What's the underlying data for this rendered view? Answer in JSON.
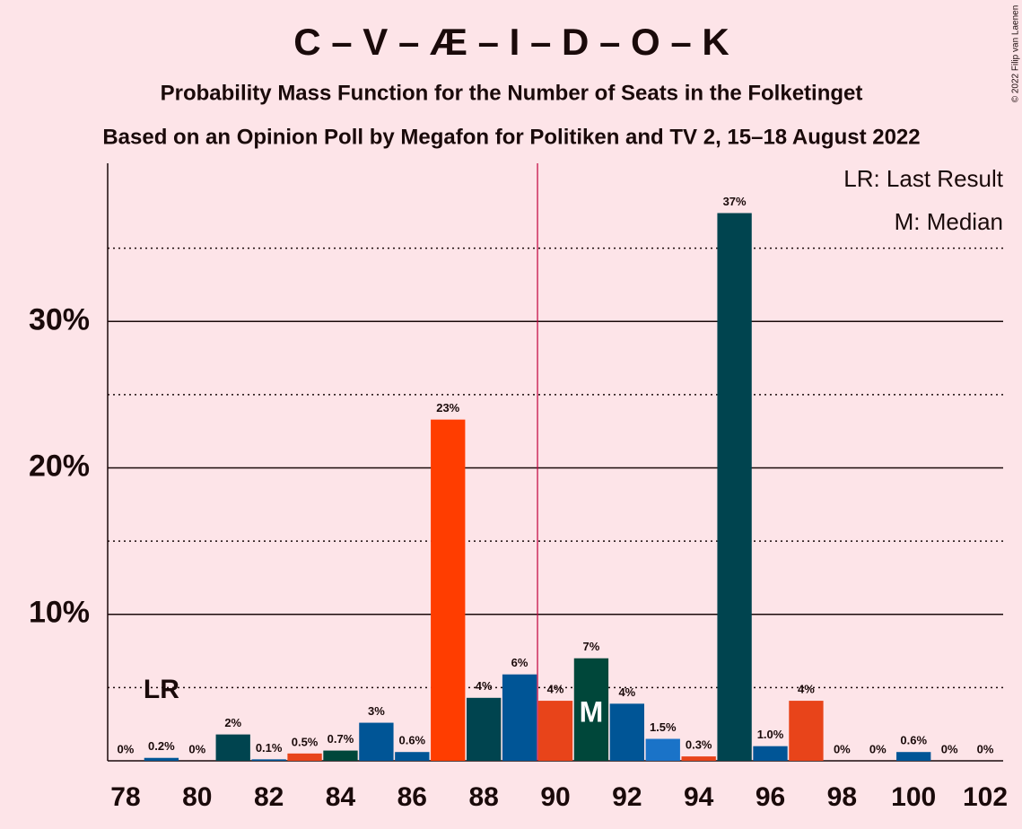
{
  "chart_data": {
    "type": "bar",
    "title": "C – V – Æ – I – D – O – K",
    "subtitles": [
      "Probability Mass Function for the Number of Seats in the Folketinget",
      "Based on an Opinion Poll by Megafon for Politiken and TV 2, 15–18 August 2022"
    ],
    "credit": "© 2022 Filip van Laenen",
    "x": [
      78,
      79,
      80,
      81,
      82,
      83,
      84,
      85,
      86,
      87,
      88,
      89,
      90,
      91,
      92,
      93,
      94,
      95,
      96,
      97,
      98,
      99,
      100,
      101,
      102
    ],
    "values": [
      0,
      0.2,
      0,
      1.8,
      0.1,
      0.5,
      0.7,
      2.6,
      0.6,
      23.3,
      4.3,
      5.9,
      4.1,
      7.0,
      3.9,
      1.5,
      0.3,
      37.4,
      1.0,
      4.1,
      0,
      0,
      0.6,
      0,
      0
    ],
    "value_labels": [
      "0%",
      "0.2%",
      "0%",
      "2%",
      "0.1%",
      "0.5%",
      "0.7%",
      "3%",
      "0.6%",
      "23%",
      "4%",
      "6%",
      "4%",
      "7%",
      "4%",
      "1.5%",
      "0.3%",
      "37%",
      "1.0%",
      "4%",
      "0%",
      "0%",
      "0.6%",
      "0%",
      "0%"
    ],
    "colors": [
      "#005596",
      "#005596",
      "#005596",
      "#00444f",
      "#005596",
      "#e8441a",
      "#00473a",
      "#005596",
      "#005596",
      "#ff3d00",
      "#00444f",
      "#005596",
      "#e8441a",
      "#00473a",
      "#005596",
      "#1a73c8",
      "#e8441a",
      "#00444f",
      "#005596",
      "#e8441a",
      "#005596",
      "#005596",
      "#005596",
      "#005596",
      "#005596"
    ],
    "xlim": [
      77.5,
      102.5
    ],
    "xticks": [
      78,
      80,
      82,
      84,
      86,
      88,
      90,
      92,
      94,
      96,
      98,
      100,
      102
    ],
    "ylim": [
      0,
      40.8
    ],
    "yticks": [
      {
        "value": 10,
        "label": "10%"
      },
      {
        "value": 20,
        "label": "20%"
      },
      {
        "value": 30,
        "label": "30%"
      }
    ],
    "minor_yticks": [
      5,
      15,
      25,
      35
    ],
    "majority_line": 89.5,
    "last_result": {
      "x": 79,
      "label": "LR"
    },
    "median": {
      "x": 91,
      "label": "M"
    },
    "legend": [
      "LR: Last Result",
      "M: Median"
    ]
  }
}
